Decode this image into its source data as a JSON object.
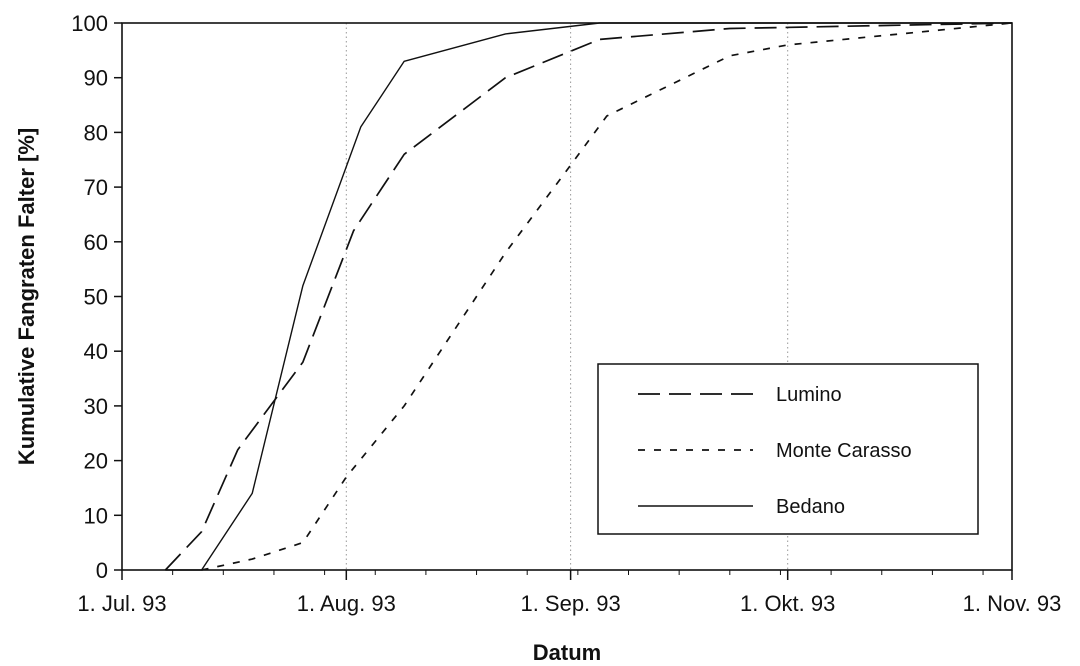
{
  "chart_data": {
    "type": "line",
    "title": "",
    "xlabel": "Datum",
    "ylabel": "Kumulative Fangraten Falter [%]",
    "x_ticks": [
      {
        "date": "1993-07-01",
        "label": "1. Jul. 93"
      },
      {
        "date": "1993-08-01",
        "label": "1. Aug. 93"
      },
      {
        "date": "1993-09-01",
        "label": "1. Sep. 93"
      },
      {
        "date": "1993-10-01",
        "label": "1. Okt. 93"
      },
      {
        "date": "1993-11-01",
        "label": "1. Nov. 93"
      }
    ],
    "xlim": [
      "1993-07-01",
      "1993-11-01"
    ],
    "ylim": [
      0,
      100
    ],
    "y_ticks": [
      0,
      10,
      20,
      30,
      40,
      50,
      60,
      70,
      80,
      90,
      100
    ],
    "grid": {
      "x_major": true,
      "y": false
    },
    "legend": {
      "position": "bottom-right"
    },
    "series": [
      {
        "name": "Lumino",
        "dash": "long-dash",
        "points": [
          {
            "x": "1993-07-07",
            "y": 0
          },
          {
            "x": "1993-07-12",
            "y": 7
          },
          {
            "x": "1993-07-17",
            "y": 22
          },
          {
            "x": "1993-07-26",
            "y": 38
          },
          {
            "x": "1993-08-02",
            "y": 62
          },
          {
            "x": "1993-08-09",
            "y": 76
          },
          {
            "x": "1993-08-23",
            "y": 90
          },
          {
            "x": "1993-09-05",
            "y": 97
          },
          {
            "x": "1993-09-23",
            "y": 99
          },
          {
            "x": "1993-11-01",
            "y": 100
          }
        ]
      },
      {
        "name": "Monte Carasso",
        "dash": "short-dash",
        "points": [
          {
            "x": "1993-07-12",
            "y": 0
          },
          {
            "x": "1993-07-19",
            "y": 2
          },
          {
            "x": "1993-07-26",
            "y": 5
          },
          {
            "x": "1993-08-01",
            "y": 17
          },
          {
            "x": "1993-08-09",
            "y": 30
          },
          {
            "x": "1993-08-23",
            "y": 58
          },
          {
            "x": "1993-09-01",
            "y": 74
          },
          {
            "x": "1993-09-06",
            "y": 83
          },
          {
            "x": "1993-09-23",
            "y": 94
          },
          {
            "x": "1993-10-01",
            "y": 96
          },
          {
            "x": "1993-11-01",
            "y": 100
          }
        ]
      },
      {
        "name": "Bedano",
        "dash": "solid",
        "points": [
          {
            "x": "1993-07-07",
            "y": 0
          },
          {
            "x": "1993-07-12",
            "y": 0
          },
          {
            "x": "1993-07-19",
            "y": 14
          },
          {
            "x": "1993-07-26",
            "y": 52
          },
          {
            "x": "1993-08-03",
            "y": 81
          },
          {
            "x": "1993-08-09",
            "y": 93
          },
          {
            "x": "1993-08-23",
            "y": 98
          },
          {
            "x": "1993-09-05",
            "y": 100
          },
          {
            "x": "1993-11-01",
            "y": 100
          }
        ]
      }
    ]
  }
}
